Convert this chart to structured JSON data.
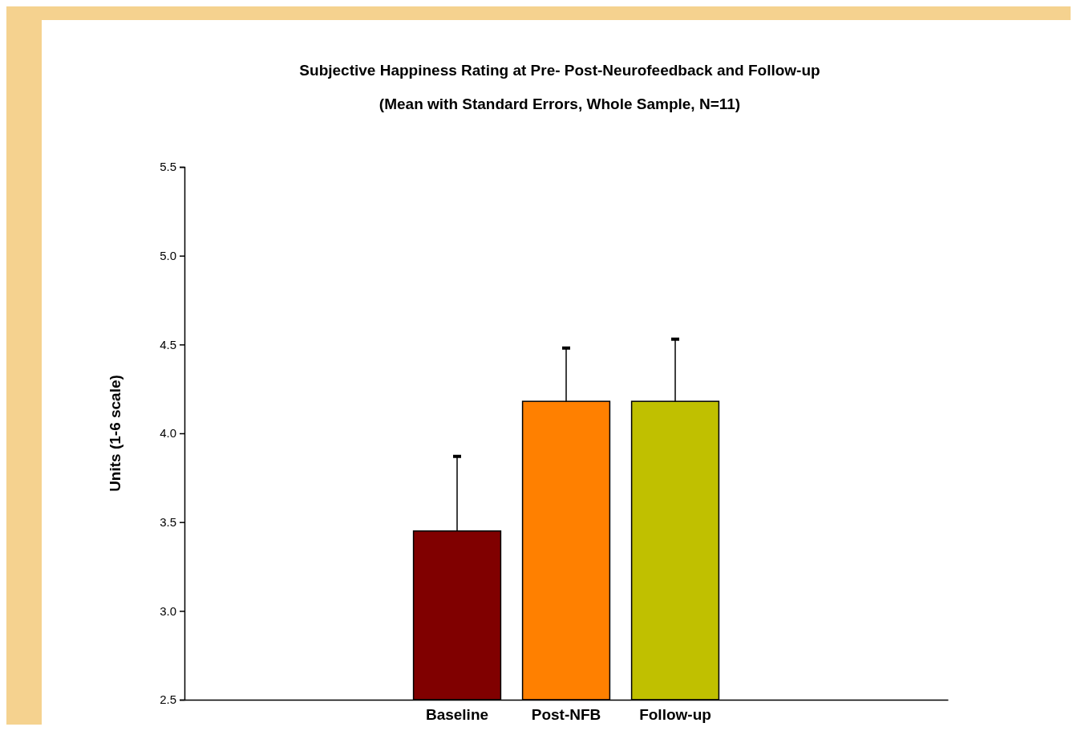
{
  "chart_data": {
    "type": "bar",
    "title": "Subjective Happiness Rating at Pre- Post-Neurofeedback and Follow-up",
    "subtitle": "(Mean with Standard Errors, Whole Sample, N=11)",
    "ylabel": "Units (1-6 scale)",
    "categories": [
      null,
      null,
      "Baseline",
      "Post-NFB",
      "Follow-up",
      null,
      null
    ],
    "values": [
      null,
      null,
      3.45,
      4.18,
      4.18,
      null,
      null
    ],
    "colors": [
      null,
      null,
      "#800000",
      "#ff8000",
      "#c0c000",
      null,
      null
    ],
    "errors": [
      null,
      null,
      [
        3.45,
        3.87
      ],
      [
        4.18,
        4.48
      ],
      [
        4.18,
        4.53
      ],
      null,
      null
    ],
    "ylim": [
      2.5,
      5.5
    ],
    "yticks": [
      {
        "value": 2.5,
        "label": "2.5"
      },
      {
        "value": 3,
        "label": "3.0"
      },
      {
        "value": 3.5,
        "label": "3.5"
      },
      {
        "value": 4,
        "label": "4.0"
      },
      {
        "value": 4.5,
        "label": "4.5"
      },
      {
        "value": 5,
        "label": "5.0"
      },
      {
        "value": 5.5,
        "label": "5.5"
      }
    ],
    "grid": false
  }
}
